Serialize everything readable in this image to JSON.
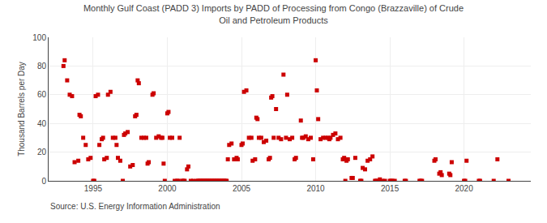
{
  "chart_data": {
    "type": "scatter",
    "title": "Monthly Gulf Coast (PADD 3) Imports by PADD of Processing from Congo (Brazzaville) of Crude\nOil and Petroleum Products",
    "ylabel": "Thousand Barrels per Day",
    "annotations": [
      "Source: U.S. Energy Information Administration"
    ],
    "color": "#cc0000",
    "marker": "square",
    "grid": true,
    "xlim": [
      1992.0,
      2024.5
    ],
    "ylim": [
      0,
      100
    ],
    "xticks": [
      1995,
      2000,
      2005,
      2010,
      2015,
      2020
    ],
    "yticks": [
      0,
      20,
      40,
      60,
      80,
      100
    ],
    "x": [
      1993.0,
      1993.08,
      1993.25,
      1993.42,
      1993.58,
      1993.75,
      1994.0,
      1994.08,
      1994.17,
      1994.33,
      1994.5,
      1994.67,
      1994.83,
      1995.0,
      1995.08,
      1995.17,
      1995.33,
      1995.42,
      1995.58,
      1995.67,
      1995.75,
      1995.92,
      1996.0,
      1996.17,
      1996.33,
      1996.5,
      1996.58,
      1996.67,
      1996.83,
      1997.0,
      1997.08,
      1997.17,
      1997.33,
      1997.5,
      1997.67,
      1997.83,
      1997.92,
      1998.0,
      1998.08,
      1998.25,
      1998.42,
      1998.58,
      1998.67,
      1998.75,
      1999.0,
      1999.08,
      1999.25,
      1999.42,
      1999.58,
      1999.67,
      1999.75,
      1999.83,
      2000.0,
      2000.08,
      2000.17,
      2000.33,
      2000.5,
      2000.67,
      2000.75,
      2000.83,
      2001.0,
      2001.08,
      2001.17,
      2001.33,
      2001.42,
      2001.58,
      2001.75,
      2002.0,
      2002.08,
      2002.17,
      2002.25,
      2002.33,
      2002.42,
      2002.5,
      2002.58,
      2002.67,
      2002.75,
      2002.83,
      2002.92,
      2003.0,
      2003.08,
      2003.17,
      2003.25,
      2003.33,
      2003.42,
      2003.5,
      2003.58,
      2003.67,
      2003.75,
      2003.83,
      2003.92,
      2004.0,
      2004.08,
      2004.17,
      2004.33,
      2004.5,
      2004.67,
      2004.75,
      2005.0,
      2005.08,
      2005.17,
      2005.33,
      2005.5,
      2005.67,
      2005.75,
      2005.92,
      2006.0,
      2006.08,
      2006.17,
      2006.33,
      2006.5,
      2006.67,
      2006.83,
      2006.92,
      2007.0,
      2007.08,
      2007.17,
      2007.33,
      2007.5,
      2007.67,
      2007.83,
      2008.0,
      2008.08,
      2008.25,
      2008.42,
      2008.58,
      2008.67,
      2009.0,
      2009.08,
      2009.17,
      2009.33,
      2009.5,
      2009.67,
      2009.83,
      2010.0,
      2010.08,
      2010.17,
      2010.33,
      2010.5,
      2010.67,
      2010.83,
      2010.92,
      2011.0,
      2011.17,
      2011.33,
      2011.5,
      2011.67,
      2011.83,
      2011.92,
      2012.0,
      2012.08,
      2012.17,
      2012.42,
      2012.5,
      2012.67,
      2013.0,
      2013.08,
      2013.17,
      2013.33,
      2013.5,
      2013.67,
      2013.83,
      2014.0,
      2014.08,
      2014.17,
      2014.33,
      2014.5,
      2014.67,
      2015.0,
      2015.08,
      2015.17,
      2015.33,
      2016.0,
      2016.08,
      2017.0,
      2017.08,
      2017.17,
      2018.0,
      2018.08,
      2018.33,
      2018.42,
      2018.5,
      2019.0,
      2019.08,
      2019.17,
      2020.0,
      2020.08,
      2020.17,
      2021.0,
      2021.08,
      2022.0,
      2022.25,
      2023.0
    ],
    "values": [
      80,
      84,
      70,
      60,
      59,
      13,
      14,
      46,
      45,
      30,
      25,
      15,
      16,
      0,
      0,
      59,
      60,
      25,
      29,
      30,
      15,
      16,
      60,
      62,
      30,
      30,
      25,
      16,
      14,
      0,
      32,
      33,
      34,
      10,
      11,
      45,
      46,
      70,
      68,
      30,
      30,
      30,
      12,
      13,
      60,
      61,
      30,
      31,
      30,
      30,
      12,
      0,
      47,
      48,
      30,
      30,
      0,
      0,
      0,
      30,
      0,
      0,
      0,
      8,
      10,
      0,
      0,
      0,
      0,
      0,
      0,
      0,
      0,
      0,
      0,
      0,
      0,
      0,
      0,
      0,
      0,
      0,
      0,
      0,
      0,
      0,
      0,
      0,
      0,
      0,
      0,
      0,
      15,
      25,
      26,
      15,
      16,
      15,
      25,
      26,
      62,
      63,
      30,
      30,
      14,
      15,
      44,
      43,
      30,
      30,
      27,
      28,
      15,
      16,
      58,
      59,
      30,
      50,
      30,
      29,
      74,
      30,
      60,
      29,
      30,
      15,
      16,
      42,
      30,
      30,
      31,
      29,
      30,
      15,
      84,
      63,
      43,
      29,
      30,
      30,
      30,
      29,
      30,
      32,
      33,
      29,
      30,
      15,
      16,
      0,
      14,
      15,
      2,
      2,
      16,
      0,
      0,
      9,
      8,
      14,
      15,
      17,
      0,
      0,
      0,
      1,
      0,
      0,
      0,
      0,
      0,
      0,
      0,
      0,
      0,
      0,
      0,
      14,
      15,
      5,
      6,
      4,
      5,
      4,
      13,
      0,
      0,
      14,
      0,
      0,
      0,
      15,
      0
    ]
  }
}
